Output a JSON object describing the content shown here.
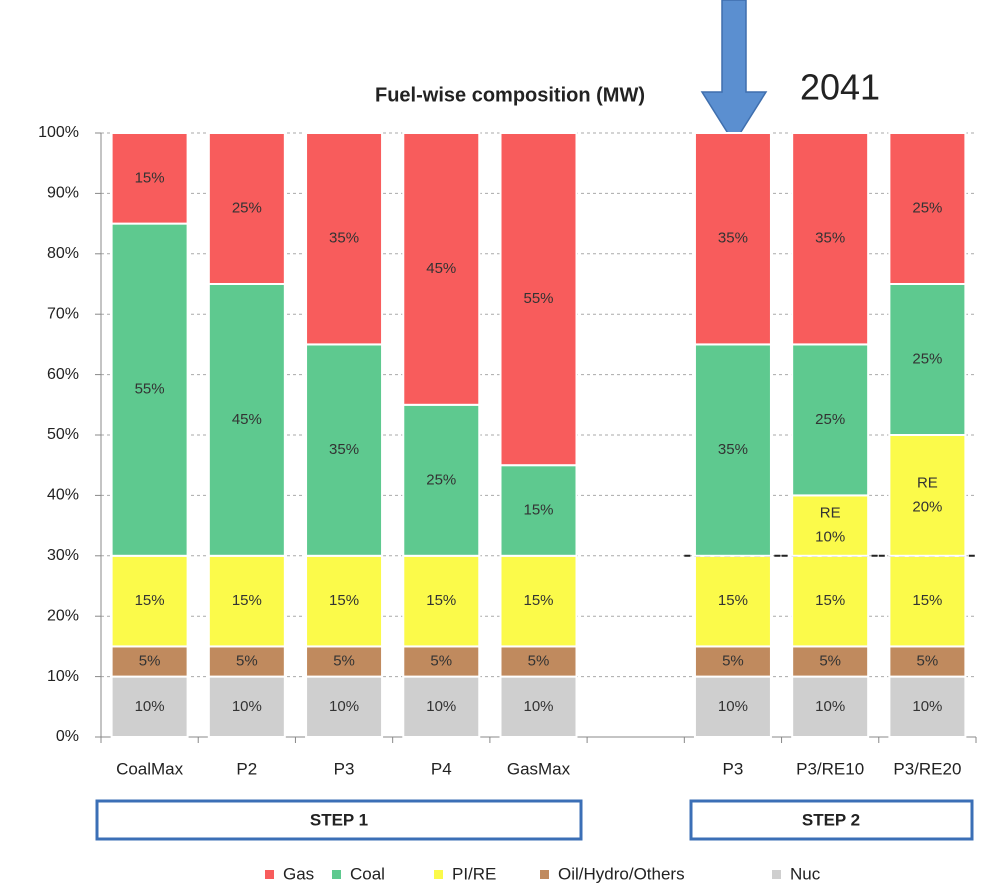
{
  "chart_data": {
    "type": "bar",
    "stacked": true,
    "title": "Fuel-wise composition (MW)",
    "annotation": "2041",
    "groups": [
      "STEP 1",
      "STEP 2"
    ],
    "categories": [
      "CoalMax",
      "P2",
      "P3",
      "P4",
      "GasMax",
      null,
      "P3",
      "P3/RE10",
      "P3/RE20"
    ],
    "ylim": [
      0,
      100
    ],
    "yticks": [
      {
        "value": 0,
        "label": "0%"
      },
      {
        "value": 10,
        "label": "10%"
      },
      {
        "value": 20,
        "label": "20%"
      },
      {
        "value": 30,
        "label": "30%"
      },
      {
        "value": 40,
        "label": "40%"
      },
      {
        "value": 50,
        "label": "50%"
      },
      {
        "value": 60,
        "label": "60%"
      },
      {
        "value": 70,
        "label": "70%"
      },
      {
        "value": 80,
        "label": "80%"
      },
      {
        "value": 90,
        "label": "90%"
      },
      {
        "value": 100,
        "label": "100%"
      }
    ],
    "grid": true,
    "series": [
      {
        "name": "Nuc",
        "color": "#cfcfcf",
        "values": [
          10,
          10,
          10,
          10,
          10,
          null,
          10,
          10,
          10
        ],
        "value_labels": [
          "10%",
          "10%",
          "10%",
          "10%",
          "10%",
          null,
          "10%",
          "10%",
          "10%"
        ]
      },
      {
        "name": "Oil/Hydro/Others",
        "color": "#c08a5e",
        "values": [
          5,
          5,
          5,
          5,
          5,
          null,
          5,
          5,
          5
        ],
        "value_labels": [
          "5%",
          "5%",
          "5%",
          "5%",
          "5%",
          null,
          "5%",
          "5%",
          "5%"
        ]
      },
      {
        "name": "PI/RE",
        "color": "#fbfa4a",
        "values": [
          15,
          15,
          15,
          15,
          15,
          null,
          15,
          15,
          15
        ],
        "value_labels": [
          "15%",
          "15%",
          "15%",
          "15%",
          "15%",
          null,
          "15%",
          "15%",
          "15%"
        ]
      },
      {
        "name": "RE",
        "color": "#fbfa4a",
        "legend": false,
        "values": [
          null,
          null,
          null,
          null,
          null,
          null,
          null,
          10,
          20
        ],
        "value_labels": [
          null,
          null,
          null,
          null,
          null,
          null,
          null,
          "10%",
          "20%"
        ]
      },
      {
        "name": "Coal",
        "color": "#5ec98f",
        "values": [
          55,
          45,
          35,
          25,
          15,
          null,
          35,
          25,
          25
        ],
        "value_labels": [
          "55%",
          "45%",
          "35%",
          "25%",
          "15%",
          null,
          "35%",
          "25%",
          "25%"
        ]
      },
      {
        "name": "Gas",
        "color": "#f85c5c",
        "values": [
          15,
          25,
          35,
          45,
          55,
          null,
          35,
          35,
          25
        ],
        "value_labels": [
          "15%",
          "25%",
          "35%",
          "45%",
          "55%",
          null,
          "35%",
          "35%",
          "25%"
        ]
      }
    ]
  }
}
